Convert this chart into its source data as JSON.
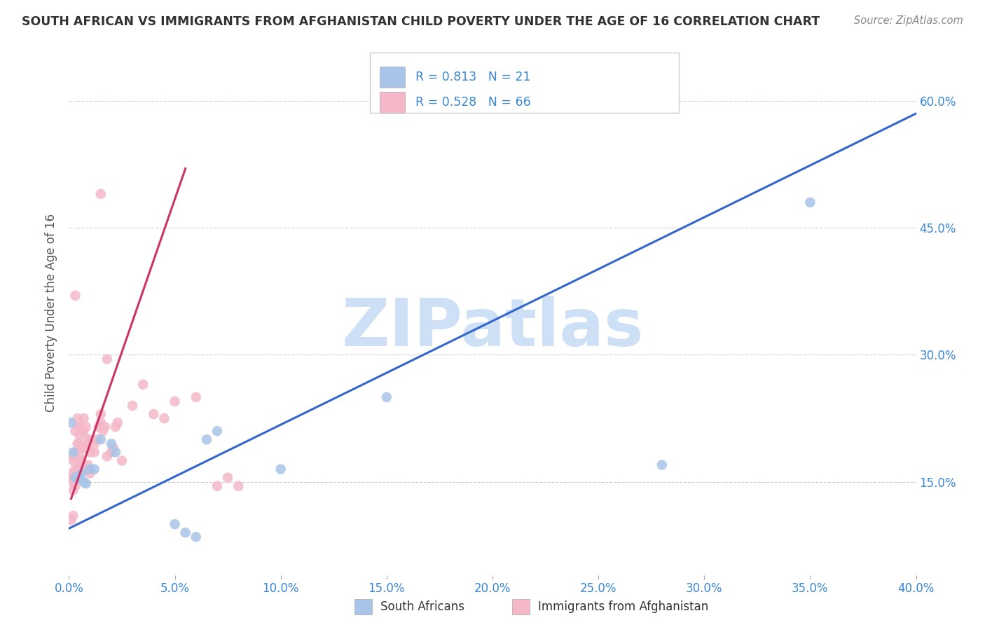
{
  "title": "SOUTH AFRICAN VS IMMIGRANTS FROM AFGHANISTAN CHILD POVERTY UNDER THE AGE OF 16 CORRELATION CHART",
  "source": "Source: ZipAtlas.com",
  "ylabel": "Child Poverty Under the Age of 16",
  "legend_blue_r": "R = 0.813",
  "legend_blue_n": "N = 21",
  "legend_pink_r": "R = 0.528",
  "legend_pink_n": "N = 66",
  "legend_label_blue": "South Africans",
  "legend_label_pink": "Immigrants from Afghanistan",
  "watermark": "ZIPatlas",
  "blue_color": "#a8c4e8",
  "pink_color": "#f4b8c8",
  "blue_line_color": "#3366cc",
  "pink_line_color": "#cc3366",
  "blue_scatter": [
    [
      0.001,
      0.22
    ],
    [
      0.002,
      0.185
    ],
    [
      0.003,
      0.155
    ],
    [
      0.005,
      0.155
    ],
    [
      0.006,
      0.16
    ],
    [
      0.007,
      0.15
    ],
    [
      0.008,
      0.148
    ],
    [
      0.01,
      0.165
    ],
    [
      0.012,
      0.165
    ],
    [
      0.015,
      0.2
    ],
    [
      0.02,
      0.195
    ],
    [
      0.022,
      0.185
    ],
    [
      0.05,
      0.1
    ],
    [
      0.055,
      0.09
    ],
    [
      0.06,
      0.085
    ],
    [
      0.065,
      0.2
    ],
    [
      0.07,
      0.21
    ],
    [
      0.1,
      0.165
    ],
    [
      0.15,
      0.25
    ],
    [
      0.28,
      0.17
    ],
    [
      0.35,
      0.48
    ]
  ],
  "pink_scatter": [
    [
      0.001,
      0.155
    ],
    [
      0.001,
      0.16
    ],
    [
      0.002,
      0.14
    ],
    [
      0.002,
      0.15
    ],
    [
      0.002,
      0.175
    ],
    [
      0.002,
      0.18
    ],
    [
      0.003,
      0.145
    ],
    [
      0.003,
      0.155
    ],
    [
      0.003,
      0.165
    ],
    [
      0.003,
      0.185
    ],
    [
      0.003,
      0.21
    ],
    [
      0.004,
      0.155
    ],
    [
      0.004,
      0.165
    ],
    [
      0.004,
      0.175
    ],
    [
      0.004,
      0.195
    ],
    [
      0.004,
      0.215
    ],
    [
      0.004,
      0.225
    ],
    [
      0.005,
      0.16
    ],
    [
      0.005,
      0.18
    ],
    [
      0.005,
      0.195
    ],
    [
      0.005,
      0.205
    ],
    [
      0.005,
      0.215
    ],
    [
      0.006,
      0.165
    ],
    [
      0.006,
      0.175
    ],
    [
      0.006,
      0.19
    ],
    [
      0.006,
      0.21
    ],
    [
      0.007,
      0.17
    ],
    [
      0.007,
      0.19
    ],
    [
      0.007,
      0.21
    ],
    [
      0.007,
      0.225
    ],
    [
      0.008,
      0.165
    ],
    [
      0.008,
      0.19
    ],
    [
      0.008,
      0.215
    ],
    [
      0.009,
      0.17
    ],
    [
      0.009,
      0.2
    ],
    [
      0.01,
      0.16
    ],
    [
      0.01,
      0.185
    ],
    [
      0.01,
      0.2
    ],
    [
      0.012,
      0.185
    ],
    [
      0.012,
      0.195
    ],
    [
      0.013,
      0.2
    ],
    [
      0.014,
      0.215
    ],
    [
      0.015,
      0.22
    ],
    [
      0.015,
      0.23
    ],
    [
      0.016,
      0.21
    ],
    [
      0.017,
      0.215
    ],
    [
      0.018,
      0.18
    ],
    [
      0.018,
      0.295
    ],
    [
      0.02,
      0.185
    ],
    [
      0.021,
      0.19
    ],
    [
      0.022,
      0.215
    ],
    [
      0.023,
      0.22
    ],
    [
      0.025,
      0.175
    ],
    [
      0.03,
      0.24
    ],
    [
      0.035,
      0.265
    ],
    [
      0.04,
      0.23
    ],
    [
      0.045,
      0.225
    ],
    [
      0.05,
      0.245
    ],
    [
      0.06,
      0.25
    ],
    [
      0.07,
      0.145
    ],
    [
      0.075,
      0.155
    ],
    [
      0.08,
      0.145
    ],
    [
      0.015,
      0.49
    ],
    [
      0.003,
      0.37
    ],
    [
      0.002,
      0.11
    ],
    [
      0.001,
      0.105
    ]
  ],
  "xlim": [
    0.0,
    0.4
  ],
  "ylim": [
    0.04,
    0.66
  ],
  "blue_line_x": [
    0.0,
    0.4
  ],
  "blue_line_y": [
    0.095,
    0.585
  ],
  "pink_line_x": [
    0.001,
    0.055
  ],
  "pink_line_y": [
    0.13,
    0.52
  ],
  "background_color": "#ffffff",
  "grid_color": "#cccccc",
  "ytick_vals": [
    0.15,
    0.3,
    0.45,
    0.6
  ],
  "xtick_vals": [
    0.0,
    0.05,
    0.1,
    0.15,
    0.2,
    0.25,
    0.3,
    0.35,
    0.4
  ]
}
